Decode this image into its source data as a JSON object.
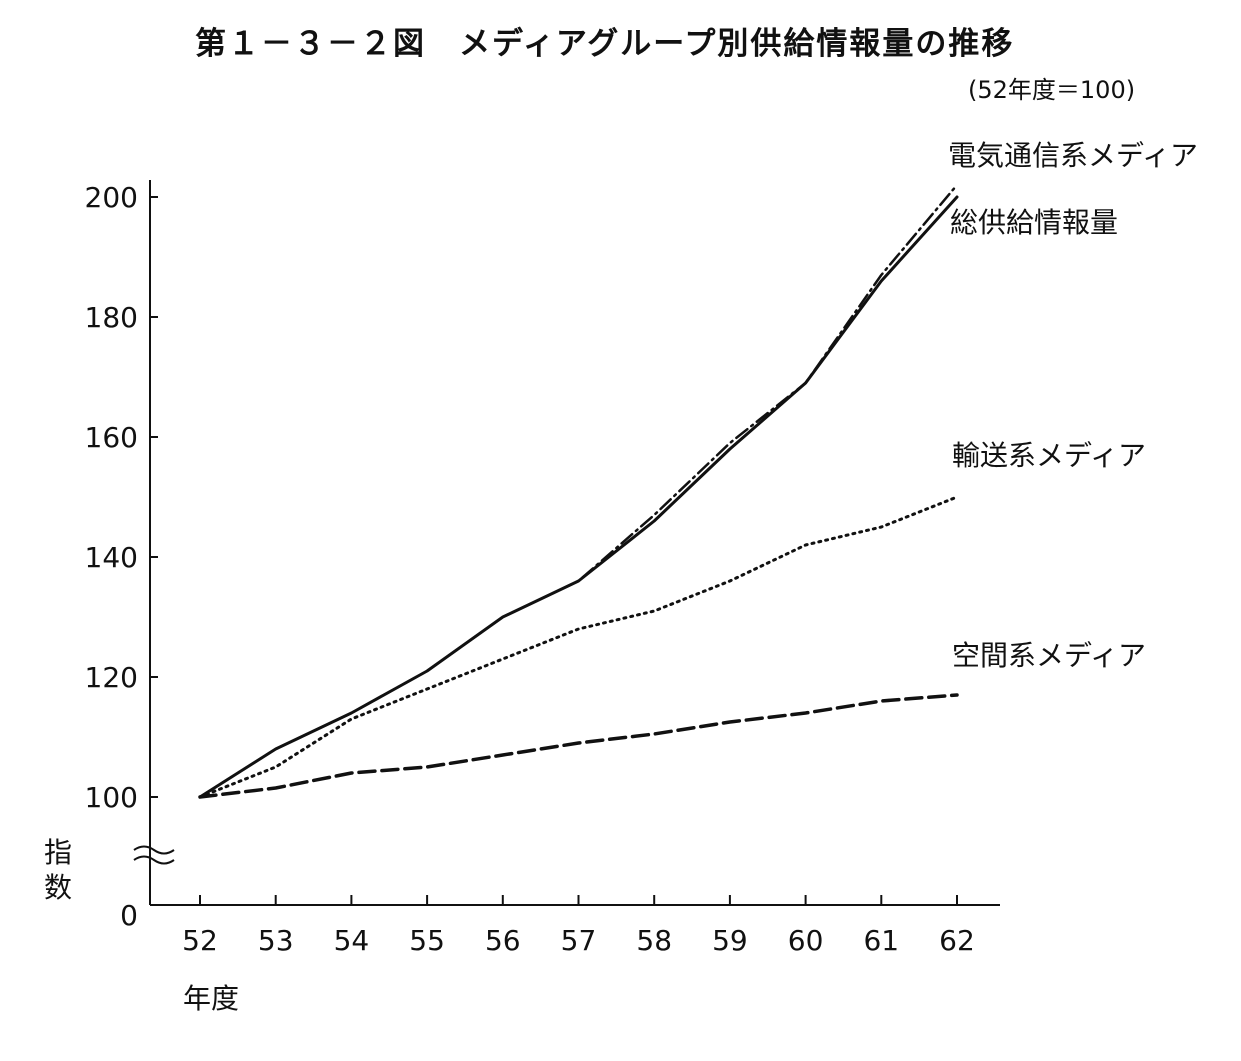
{
  "figure": {
    "title": "第１－３－２図　メディアグループ別供給情報量の推移",
    "subtitle": "(52年度＝100)"
  },
  "chart_data": {
    "type": "line",
    "title": "第１－３－２図　メディアグループ別供給情報量の推移",
    "subtitle": "(52年度＝100)",
    "xlabel": "年度",
    "ylabel": "指数",
    "categories": [
      "52",
      "53",
      "54",
      "55",
      "56",
      "57",
      "58",
      "59",
      "60",
      "61",
      "62"
    ],
    "y_ticks": [
      "0",
      "100",
      "120",
      "140",
      "160",
      "180",
      "200"
    ],
    "ylim": [
      0,
      200
    ],
    "axis_break": true,
    "grid": false,
    "series": [
      {
        "name": "電気通信系メディア",
        "style": "dashdot",
        "values": [
          100,
          108,
          114,
          121,
          130,
          136,
          147,
          159,
          169,
          187,
          202
        ]
      },
      {
        "name": "総供給情報量",
        "style": "solid",
        "values": [
          100,
          108,
          114,
          121,
          130,
          136,
          146,
          158,
          169,
          186,
          200
        ]
      },
      {
        "name": "輸送系メディア",
        "style": "dotted",
        "values": [
          100,
          105,
          113,
          118,
          123,
          128,
          131,
          136,
          142,
          145,
          150
        ]
      },
      {
        "name": "空間系メディア",
        "style": "dashed",
        "values": [
          100,
          101.5,
          104,
          105,
          107,
          109,
          110.5,
          112.5,
          114,
          116,
          117
        ]
      }
    ],
    "colors": {
      "line": "#111111",
      "background": "#ffffff"
    }
  }
}
